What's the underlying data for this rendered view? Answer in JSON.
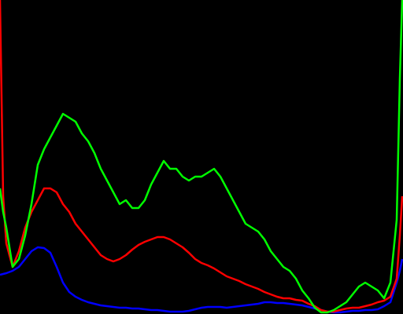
{
  "chart_data": {
    "type": "line",
    "x": [
      0,
      2,
      4,
      8,
      12,
      16,
      20,
      24,
      28,
      32,
      36,
      40,
      44,
      48,
      52,
      56,
      60,
      64,
      68,
      72,
      76,
      80,
      84,
      88,
      92,
      96,
      100,
      104,
      108,
      112,
      116,
      120,
      124,
      128,
      132,
      136,
      140,
      144,
      148,
      152,
      156,
      160,
      164,
      168,
      172,
      176,
      180,
      184,
      188,
      192,
      196,
      200,
      204,
      208,
      212,
      216,
      220,
      224,
      228,
      232,
      236,
      240,
      244,
      248,
      252,
      254,
      255.5
    ],
    "xlim": [
      0,
      256
    ],
    "ylim": [
      0,
      100
    ],
    "background": "#000000",
    "series": [
      {
        "color": "#0000ff",
        "values": [
          12.5,
          12.75,
          13,
          13.75,
          15,
          17.5,
          20,
          21.25,
          21,
          19.5,
          15,
          10,
          7,
          5.5,
          4.5,
          3.75,
          3.25,
          2.75,
          2.5,
          2.25,
          2,
          2,
          1.75,
          1.75,
          1.5,
          1.25,
          1.25,
          1,
          0.75,
          0.75,
          0.75,
          1,
          1.5,
          2,
          2.25,
          2.25,
          2.25,
          2,
          2.25,
          2.5,
          2.75,
          3,
          3.25,
          3.75,
          3.75,
          3.5,
          3.5,
          3.25,
          3,
          2.75,
          2.25,
          1.75,
          1.25,
          0.75,
          0.5,
          0.5,
          0.75,
          1,
          1,
          1.25,
          1.25,
          1.5,
          2.5,
          3.75,
          10,
          13.75,
          17.5
        ]
      },
      {
        "color": "#ff0000",
        "values": [
          100,
          37.5,
          22.5,
          15,
          20,
          27.5,
          32.5,
          36.25,
          40,
          40,
          38.75,
          35,
          32.5,
          28.75,
          26.25,
          23.75,
          21.25,
          18.75,
          17.5,
          16.75,
          17.5,
          18.75,
          20.5,
          22,
          23,
          23.75,
          24.5,
          24.5,
          23.75,
          22.5,
          21.25,
          19.5,
          17.5,
          16.25,
          15.5,
          14.5,
          13.25,
          12,
          11.25,
          10.5,
          9.5,
          8.75,
          8,
          7,
          6.25,
          5.5,
          5,
          5,
          4.5,
          4.25,
          3.25,
          2.5,
          1.25,
          0.75,
          0.75,
          1.25,
          1.75,
          2,
          2,
          2.5,
          3,
          3.75,
          4.25,
          5.5,
          11.25,
          25,
          37.5
        ]
      },
      {
        "color": "#00ff00",
        "values": [
          40,
          32.5,
          27.5,
          15,
          17.5,
          25,
          35,
          47.5,
          52.5,
          56.25,
          60,
          63.75,
          62.5,
          61.25,
          57.5,
          55,
          51.25,
          46.25,
          42.5,
          38.75,
          35,
          36.25,
          33.75,
          33.75,
          36.25,
          41.25,
          45,
          48.75,
          46.25,
          46.25,
          43.75,
          42.5,
          43.75,
          43.75,
          45,
          46.25,
          43.75,
          40,
          36.25,
          32.5,
          28.75,
          27.5,
          26.25,
          23.75,
          20,
          17.5,
          15,
          13.75,
          11.25,
          7.5,
          5,
          2,
          0.5,
          0.5,
          1.25,
          2.5,
          3.75,
          6.25,
          8.75,
          10,
          8.75,
          7.5,
          5,
          10,
          30,
          75,
          100
        ]
      }
    ]
  }
}
